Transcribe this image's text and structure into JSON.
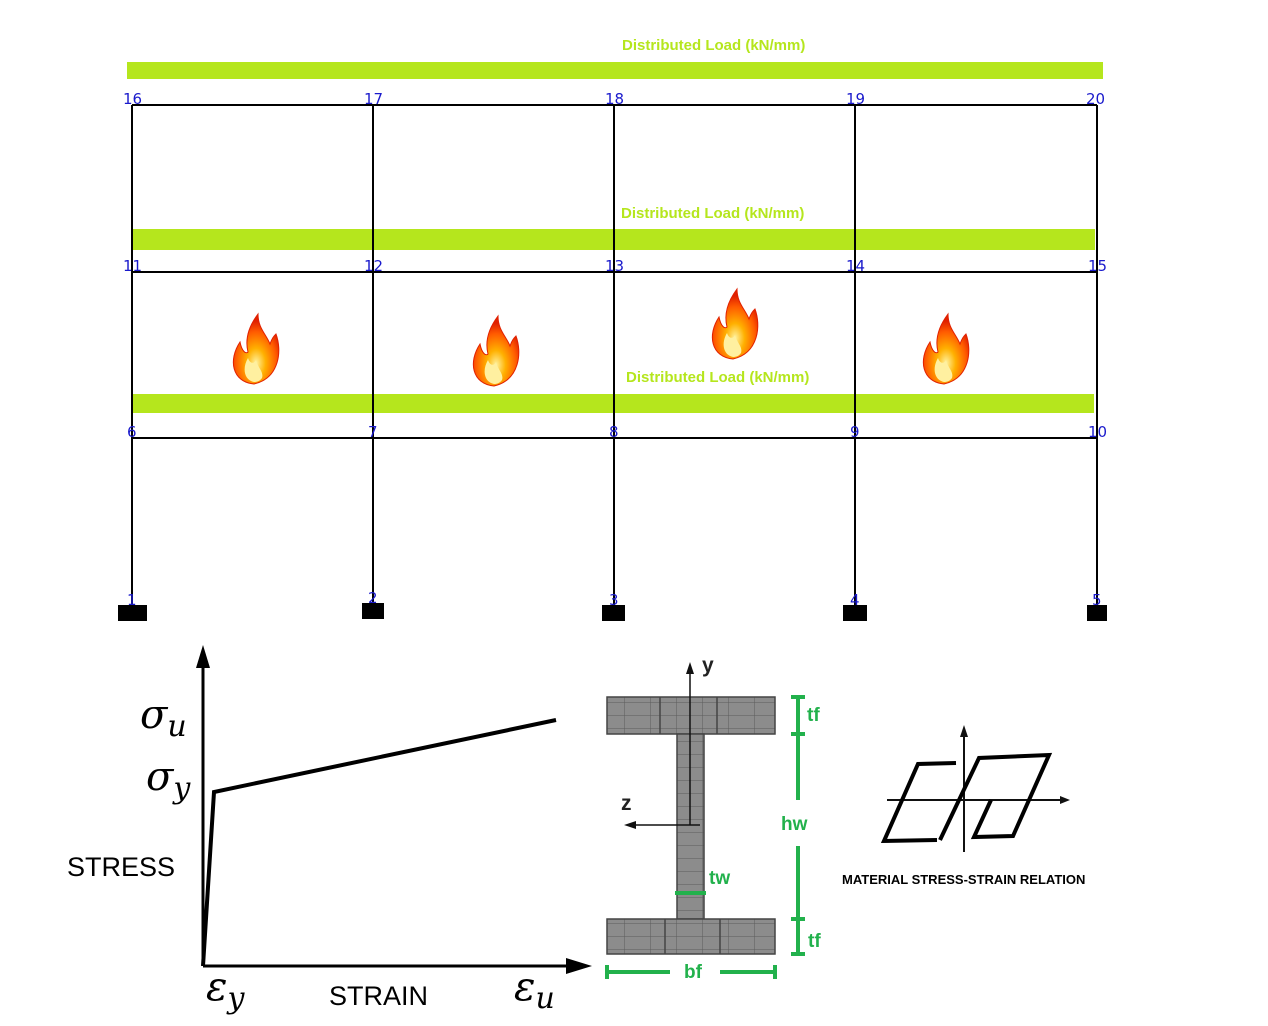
{
  "frame": {
    "load_label": "Distributed Load (kN/mm)",
    "load_color": "#b5e61d",
    "node_color": "#1a1acc",
    "node_labels": {
      "roof": [
        "16",
        "17",
        "18",
        "19",
        "20"
      ],
      "second": [
        "11",
        "12",
        "13",
        "14",
        "15"
      ],
      "first": [
        "6",
        "7",
        "8",
        "9",
        "10"
      ],
      "base": [
        "1",
        "2",
        "3",
        "4",
        "5"
      ]
    },
    "fire_icon_count": 4
  },
  "stress_strain": {
    "sigma_u": "σu",
    "sigma_y": "σy",
    "eps_y": "εy",
    "eps_u": "εu",
    "y_axis_label": "STRESS",
    "x_axis_label": "STRAIN"
  },
  "section": {
    "y_axis": "y",
    "z_axis": "z",
    "tf_top": "tf",
    "tf_bottom": "tf",
    "hw": "hw",
    "tw": "tw",
    "bf": "bf",
    "dim_color": "#22b14c"
  },
  "hysteresis": {
    "caption": "MATERIAL STRESS-STRAIN RELATION"
  }
}
